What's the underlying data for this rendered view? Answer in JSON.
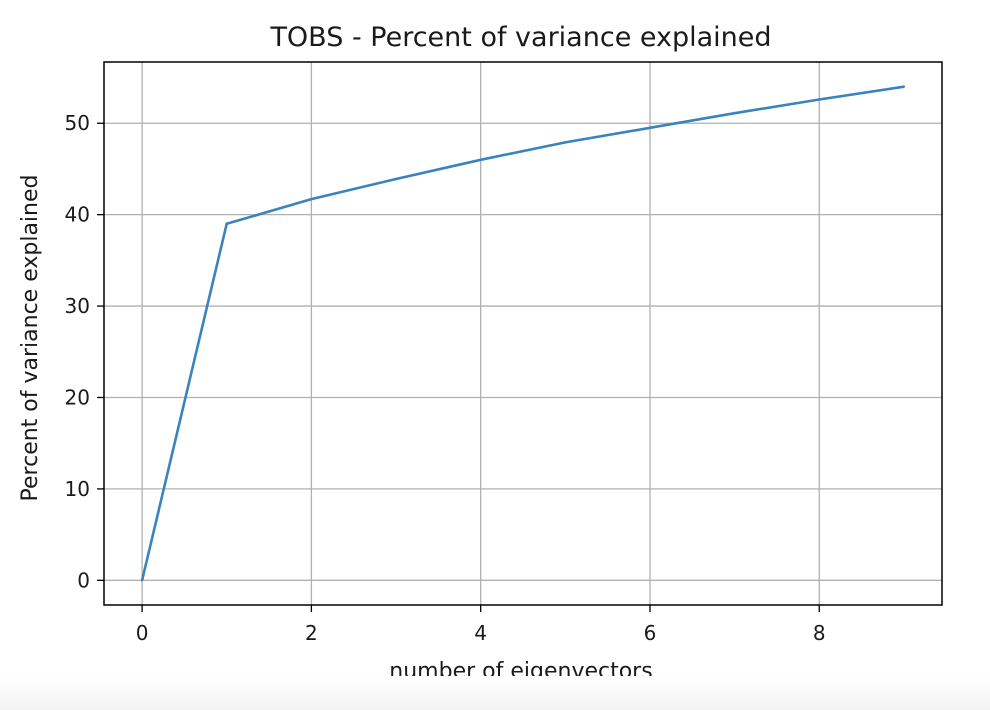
{
  "chart_data": {
    "type": "line",
    "title": "TOBS - Percent of variance explained",
    "xlabel": "number of eigenvectors",
    "ylabel": "Percent of variance explained",
    "xlim": [
      -0.45,
      9.45
    ],
    "ylim": [
      -2.7,
      56.7
    ],
    "xticks": [
      0,
      2,
      4,
      6,
      8
    ],
    "yticks": [
      0,
      10,
      20,
      30,
      40,
      50
    ],
    "grid": true,
    "x": [
      0,
      1,
      2,
      3,
      4,
      5,
      6,
      7,
      8,
      9
    ],
    "series": [
      {
        "values": [
          0,
          39.0,
          41.7,
          43.9,
          46.0,
          47.9,
          49.5,
          51.1,
          52.6,
          54.0
        ]
      }
    ],
    "colors": {
      "line": "#3a83bf",
      "grid": "#b0b0b0",
      "axes": "#000000"
    }
  }
}
